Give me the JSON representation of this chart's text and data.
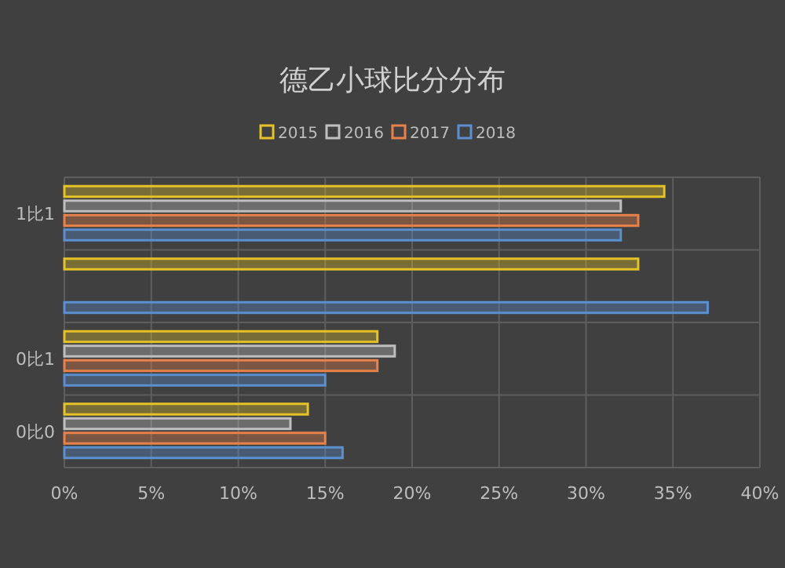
{
  "chart_data": {
    "type": "bar",
    "orientation": "horizontal",
    "title": "德乙小球比分分布",
    "categories": [
      "1比1",
      null,
      "0比1",
      "0比0"
    ],
    "series": [
      {
        "name": "2015",
        "color": "#e6c229",
        "values": [
          34.5,
          33,
          18,
          14
        ]
      },
      {
        "name": "2016",
        "color": "#bfbfbf",
        "values": [
          32,
          null,
          19,
          13
        ]
      },
      {
        "name": "2017",
        "color": "#e8824a",
        "values": [
          33,
          null,
          18,
          15
        ]
      },
      {
        "name": "2018",
        "color": "#5b8fd0",
        "values": [
          32,
          37,
          15,
          16
        ]
      }
    ],
    "xlim": [
      0,
      40
    ],
    "xticks": [
      {
        "value": 0,
        "label": "0%"
      },
      {
        "value": 5,
        "label": "5%"
      },
      {
        "value": 10,
        "label": "10%"
      },
      {
        "value": 15,
        "label": "15%"
      },
      {
        "value": 20,
        "label": "20%"
      },
      {
        "value": 25,
        "label": "25%"
      },
      {
        "value": 30,
        "label": "30%"
      },
      {
        "value": 35,
        "label": "35%"
      },
      {
        "value": 40,
        "label": "40%"
      }
    ],
    "grid": true,
    "legend": "top"
  }
}
